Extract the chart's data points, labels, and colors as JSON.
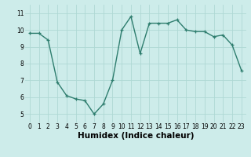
{
  "x": [
    0,
    1,
    2,
    3,
    4,
    5,
    6,
    7,
    8,
    9,
    10,
    11,
    12,
    13,
    14,
    15,
    16,
    17,
    18,
    19,
    20,
    21,
    22,
    23
  ],
  "y": [
    9.8,
    9.8,
    9.4,
    6.9,
    6.1,
    5.9,
    5.8,
    5.0,
    5.6,
    7.0,
    10.0,
    10.8,
    8.6,
    10.4,
    10.4,
    10.4,
    10.6,
    10.0,
    9.9,
    9.9,
    9.6,
    9.7,
    9.1,
    7.6
  ],
  "line_color": "#2e7d6e",
  "marker": "+",
  "marker_size": 3.5,
  "linewidth": 1.0,
  "xlabel": "Humidex (Indice chaleur)",
  "xlabel_fontsize": 7.5,
  "xlabel_weight": "bold",
  "ylim": [
    4.5,
    11.5
  ],
  "xlim": [
    -0.5,
    23.5
  ],
  "yticks": [
    5,
    6,
    7,
    8,
    9,
    10,
    11
  ],
  "xticks": [
    0,
    1,
    2,
    3,
    4,
    5,
    6,
    7,
    8,
    9,
    10,
    11,
    12,
    13,
    14,
    15,
    16,
    17,
    18,
    19,
    20,
    21,
    22,
    23
  ],
  "bg_color": "#cdecea",
  "grid_color": "#afd8d4",
  "tick_fontsize": 5.5
}
